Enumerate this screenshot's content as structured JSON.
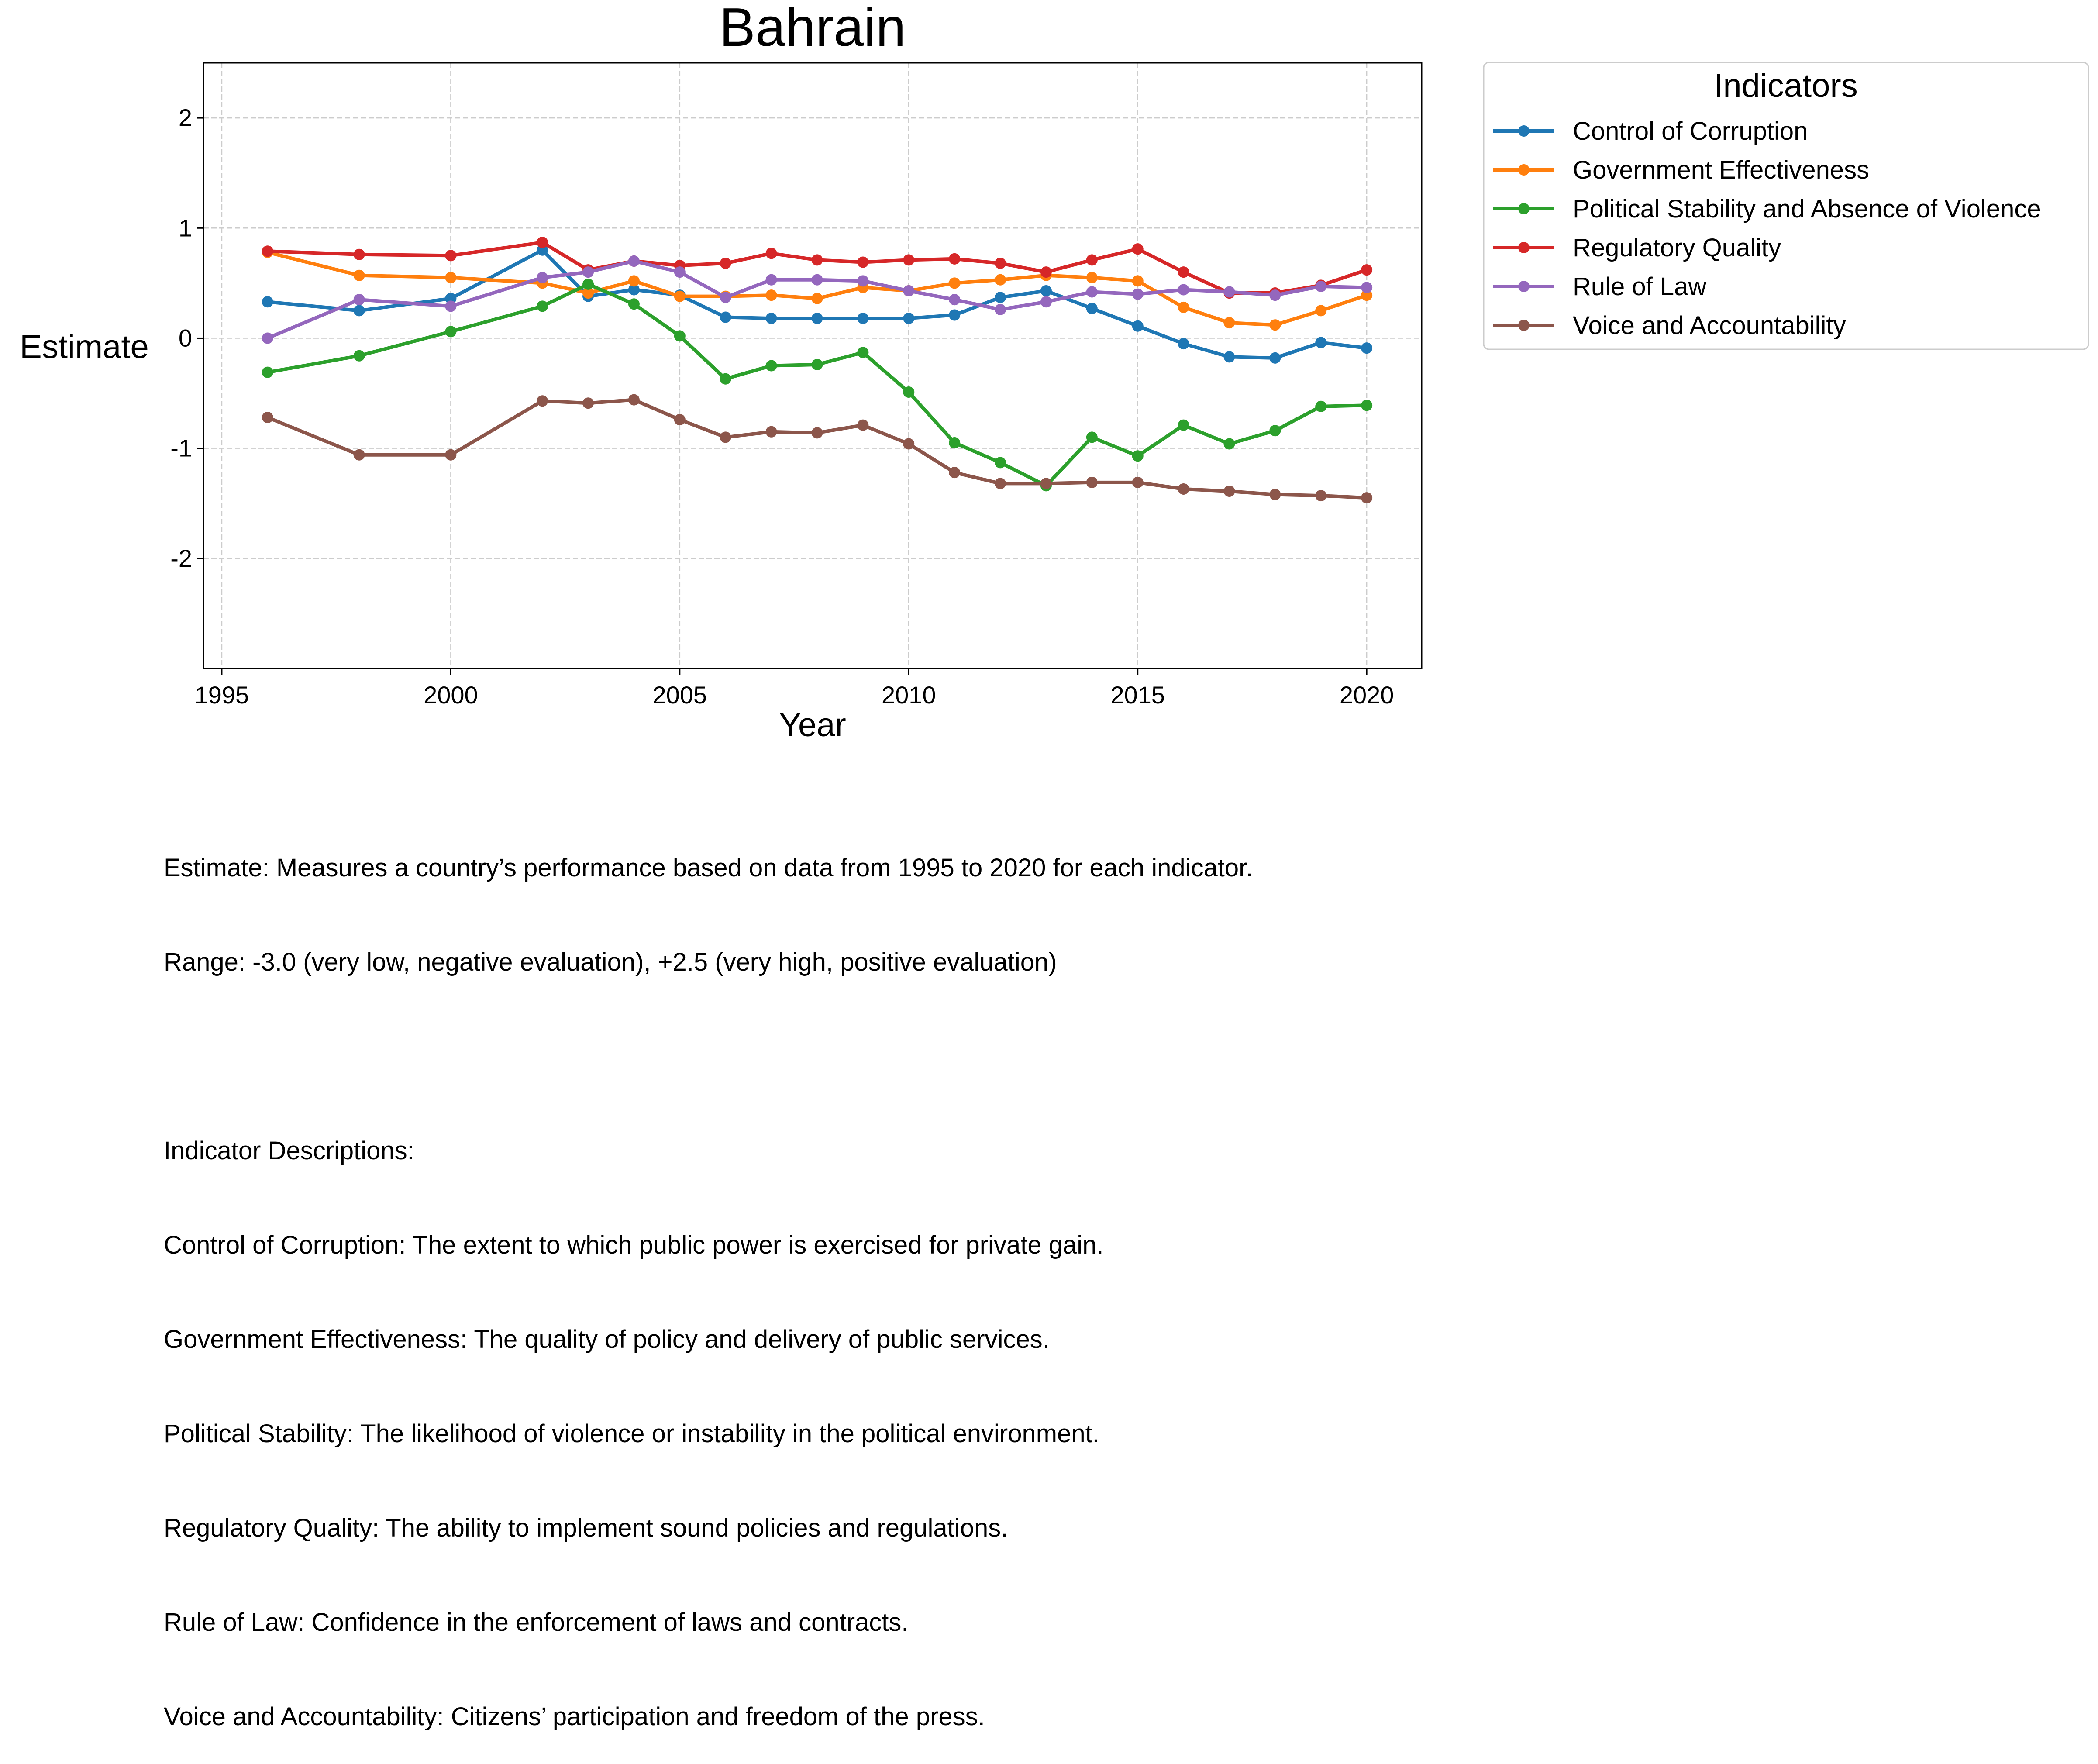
{
  "chart_data": {
    "type": "line",
    "title": "Bahrain",
    "xlabel": "Year",
    "ylabel": "Estimate",
    "xlim": [
      1994.6,
      2021.2
    ],
    "ylim": [
      -3.0,
      2.5
    ],
    "xticks": [
      1995,
      2000,
      2005,
      2010,
      2015,
      2020
    ],
    "yticks": [
      2,
      1,
      0,
      -1,
      -2
    ],
    "ytick_labels": [
      "2",
      "1",
      "0",
      "-1",
      "-2"
    ],
    "grid": true,
    "grid_style": "dashed",
    "legend_title": "Indicators",
    "legend_position": "outside-upper-right",
    "x": [
      1996,
      1998,
      2000,
      2002,
      2003,
      2004,
      2005,
      2006,
      2007,
      2008,
      2009,
      2010,
      2011,
      2012,
      2013,
      2014,
      2015,
      2016,
      2017,
      2018,
      2019,
      2020
    ],
    "series": [
      {
        "name": "Control of Corruption",
        "color": "#1f77b4",
        "values": [
          0.33,
          0.25,
          0.36,
          0.8,
          0.38,
          0.44,
          0.39,
          0.19,
          0.18,
          0.18,
          0.18,
          0.18,
          0.21,
          0.37,
          0.43,
          0.27,
          0.11,
          -0.05,
          -0.17,
          -0.18,
          -0.04,
          -0.09
        ]
      },
      {
        "name": "Government Effectiveness",
        "color": "#ff7f0e",
        "values": [
          0.78,
          0.57,
          0.55,
          0.5,
          0.41,
          0.52,
          0.38,
          0.38,
          0.39,
          0.36,
          0.46,
          0.43,
          0.5,
          0.53,
          0.57,
          0.55,
          0.52,
          0.28,
          0.14,
          0.12,
          0.25,
          0.39
        ]
      },
      {
        "name": "Political Stability and Absence of Violence",
        "color": "#2ca02c",
        "values": [
          -0.31,
          -0.16,
          0.06,
          0.29,
          0.49,
          0.31,
          0.02,
          -0.37,
          -0.25,
          -0.24,
          -0.13,
          -0.49,
          -0.95,
          -1.13,
          -1.34,
          -0.9,
          -1.07,
          -0.79,
          -0.96,
          -0.84,
          -0.62,
          -0.61
        ]
      },
      {
        "name": "Regulatory Quality",
        "color": "#d62728",
        "values": [
          0.79,
          0.76,
          0.75,
          0.87,
          0.62,
          0.7,
          0.66,
          0.68,
          0.77,
          0.71,
          0.69,
          0.71,
          0.72,
          0.68,
          0.6,
          0.71,
          0.81,
          0.6,
          0.41,
          0.41,
          0.48,
          0.62
        ]
      },
      {
        "name": "Rule of Law",
        "color": "#9467bd",
        "values": [
          0.0,
          0.35,
          0.29,
          0.55,
          0.6,
          0.7,
          0.6,
          0.37,
          0.53,
          0.53,
          0.52,
          0.43,
          0.35,
          0.26,
          0.33,
          0.42,
          0.4,
          0.44,
          0.42,
          0.39,
          0.47,
          0.46
        ]
      },
      {
        "name": "Voice and Accountability",
        "color": "#8c564b",
        "values": [
          -0.72,
          -1.06,
          -1.06,
          -0.57,
          -0.59,
          -0.56,
          -0.74,
          -0.9,
          -0.85,
          -0.86,
          -0.79,
          -0.96,
          -1.22,
          -1.32,
          -1.32,
          -1.31,
          -1.31,
          -1.37,
          -1.39,
          -1.42,
          -1.43,
          -1.45
        ]
      }
    ],
    "caption_lines": [
      "Estimate: Measures a country’s performance based on data from 1995 to 2020 for each indicator.",
      "Range: -3.0 (very low, negative evaluation), +2.5 (very high, positive evaluation)",
      "",
      "Indicator Descriptions:",
      "Control of Corruption: The extent to which public power is exercised for private gain.",
      "Government Effectiveness: The quality of policy and delivery of public services.",
      "Political Stability: The likelihood of violence or instability in the political environment.",
      "Regulatory Quality: The ability to implement sound policies and regulations.",
      "Rule of Law: Confidence in the enforcement of laws and contracts.",
      "Voice and Accountability: Citizens’ participation and freedom of the press."
    ]
  }
}
